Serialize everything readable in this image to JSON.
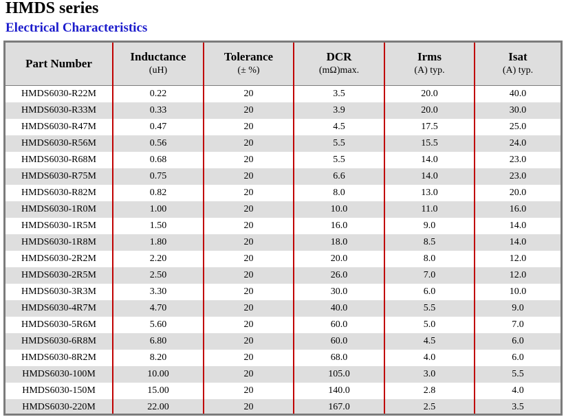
{
  "title": "HMDS series",
  "subtitle": "Electrical Characteristics",
  "columns": [
    {
      "label": "Part Number",
      "unit": ""
    },
    {
      "label": "Inductance",
      "unit": "(uH)"
    },
    {
      "label": "Tolerance",
      "unit": "(± %)"
    },
    {
      "label": "DCR",
      "unit": "(mΩ)max."
    },
    {
      "label": "Irms",
      "unit": "(A) typ."
    },
    {
      "label": "Isat",
      "unit": "(A) typ."
    }
  ],
  "rows": [
    [
      "HMDS6030-R22M",
      "0.22",
      "20",
      "3.5",
      "20.0",
      "40.0"
    ],
    [
      "HMDS6030-R33M",
      "0.33",
      "20",
      "3.9",
      "20.0",
      "30.0"
    ],
    [
      "HMDS6030-R47M",
      "0.47",
      "20",
      "4.5",
      "17.5",
      "25.0"
    ],
    [
      "HMDS6030-R56M",
      "0.56",
      "20",
      "5.5",
      "15.5",
      "24.0"
    ],
    [
      "HMDS6030-R68M",
      "0.68",
      "20",
      "5.5",
      "14.0",
      "23.0"
    ],
    [
      "HMDS6030-R75M",
      "0.75",
      "20",
      "6.6",
      "14.0",
      "23.0"
    ],
    [
      "HMDS6030-R82M",
      "0.82",
      "20",
      "8.0",
      "13.0",
      "20.0"
    ],
    [
      "HMDS6030-1R0M",
      "1.00",
      "20",
      "10.0",
      "11.0",
      "16.0"
    ],
    [
      "HMDS6030-1R5M",
      "1.50",
      "20",
      "16.0",
      "9.0",
      "14.0"
    ],
    [
      "HMDS6030-1R8M",
      "1.80",
      "20",
      "18.0",
      "8.5",
      "14.0"
    ],
    [
      "HMDS6030-2R2M",
      "2.20",
      "20",
      "20.0",
      "8.0",
      "12.0"
    ],
    [
      "HMDS6030-2R5M",
      "2.50",
      "20",
      "26.0",
      "7.0",
      "12.0"
    ],
    [
      "HMDS6030-3R3M",
      "3.30",
      "20",
      "30.0",
      "6.0",
      "10.0"
    ],
    [
      "HMDS6030-4R7M",
      "4.70",
      "20",
      "40.0",
      "5.5",
      "9.0"
    ],
    [
      "HMDS6030-5R6M",
      "5.60",
      "20",
      "60.0",
      "5.0",
      "7.0"
    ],
    [
      "HMDS6030-6R8M",
      "6.80",
      "20",
      "60.0",
      "4.5",
      "6.0"
    ],
    [
      "HMDS6030-8R2M",
      "8.20",
      "20",
      "68.0",
      "4.0",
      "6.0"
    ],
    [
      "HMDS6030-100M",
      "10.00",
      "20",
      "105.0",
      "3.0",
      "5.5"
    ],
    [
      "HMDS6030-150M",
      "15.00",
      "20",
      "140.0",
      "2.8",
      "4.0"
    ],
    [
      "HMDS6030-220M",
      "22.00",
      "20",
      "167.0",
      "2.5",
      "3.5"
    ]
  ],
  "colors": {
    "subtitle": "#1c1ccc",
    "column_divider": "#c00000",
    "frame_border": "#7b7b7b",
    "band_fill": "#dedede"
  }
}
